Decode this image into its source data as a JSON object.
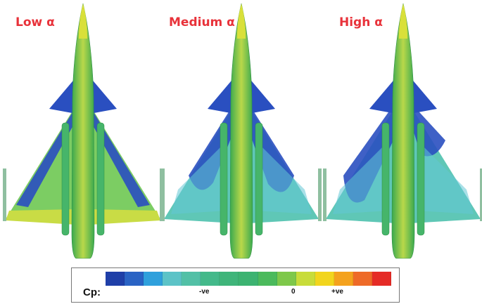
{
  "panels": [
    {
      "title": "Low α",
      "regime": "low"
    },
    {
      "title": "Medium α",
      "regime": "medium"
    },
    {
      "title": "High α",
      "regime": "high"
    }
  ],
  "legend": {
    "label": "Cp:",
    "ticks": [
      "-ve",
      "0",
      "+ve"
    ],
    "colors": [
      "#1f3fa8",
      "#2a63c4",
      "#2fa0dc",
      "#5cc3c7",
      "#52c0a6",
      "#43b98a",
      "#3fb57a",
      "#3cb371",
      "#4bba5c",
      "#7ec84a",
      "#c8dc3a",
      "#f2d51d",
      "#f4a21e",
      "#ee6a28",
      "#e52b26"
    ]
  },
  "colors": {
    "title": "#e8323a",
    "deep_blue": "#2a4fc0",
    "cyan": "#62c7d6",
    "teal": "#5fc7b6",
    "green": "#4cb86a",
    "yellow_green": "#b9d84a"
  }
}
